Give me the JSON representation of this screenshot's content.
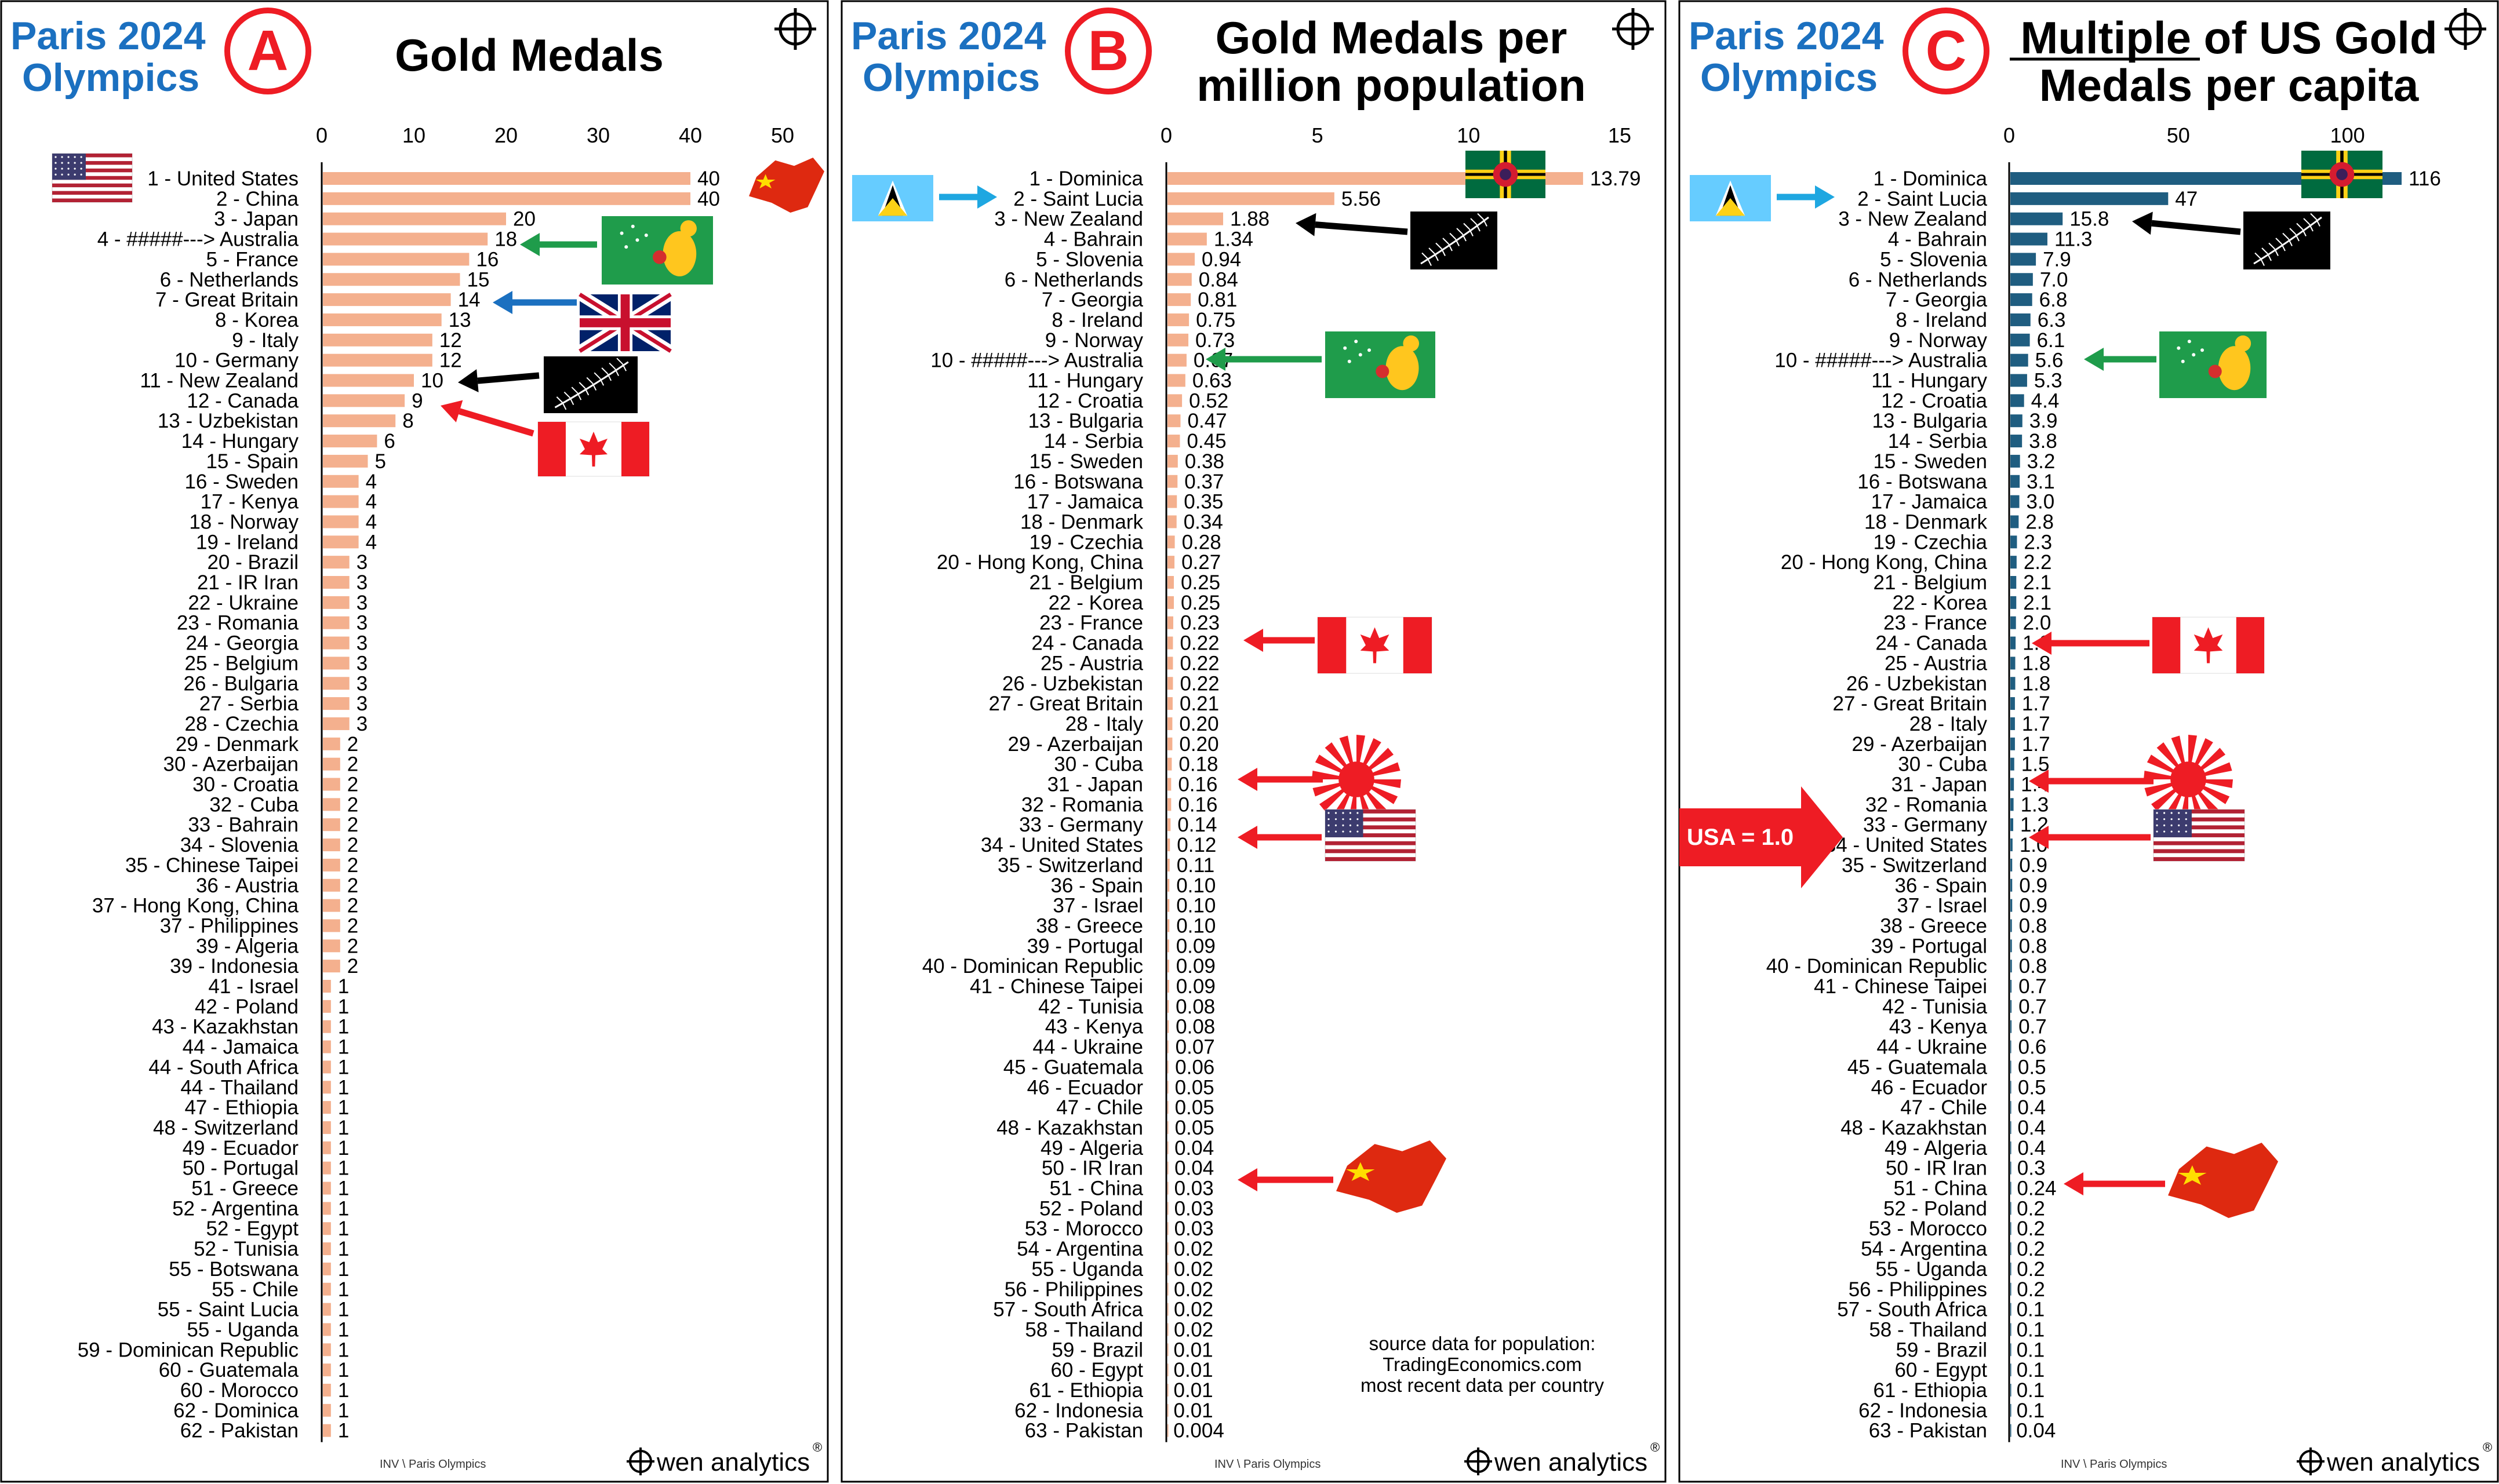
{
  "panels": [
    {
      "event": "Paris 2024\nOlympics",
      "badge": "A",
      "title": "Gold Medals",
      "source_note": "",
      "footer": "INV \\ Paris Olympics",
      "brand": "wen analytics",
      "chart_data": {
        "type": "bar",
        "orientation": "horizontal",
        "xlim": [
          0,
          50
        ],
        "ticks": [
          0,
          10,
          20,
          30,
          40,
          50
        ],
        "bar_color": "#f4b08e",
        "categories": [
          "1 - United States",
          "2 - China",
          "3 - Japan",
          "4 - #####--->  Australia",
          "5 - France",
          "6 - Netherlands",
          "7 - Great Britain",
          "8 - Korea",
          "9 - Italy",
          "10 - Germany",
          "11 - New Zealand",
          "12 - Canada",
          "13 - Uzbekistan",
          "14 - Hungary",
          "15 - Spain",
          "16 - Sweden",
          "17 - Kenya",
          "18 - Norway",
          "19 - Ireland",
          "20 - Brazil",
          "21 - IR Iran",
          "22 - Ukraine",
          "23 - Romania",
          "24 - Georgia",
          "25 - Belgium",
          "26 - Bulgaria",
          "27 - Serbia",
          "28 - Czechia",
          "29 - Denmark",
          "30 - Azerbaijan",
          "30 - Croatia",
          "32 - Cuba",
          "33 - Bahrain",
          "34 - Slovenia",
          "35 - Chinese Taipei",
          "36 - Austria",
          "37 - Hong Kong, China",
          "37 - Philippines",
          "39 - Algeria",
          "39 - Indonesia",
          "41 - Israel",
          "42 - Poland",
          "43 - Kazakhstan",
          "44 - Jamaica",
          "44 - South Africa",
          "44 - Thailand",
          "47 - Ethiopia",
          "48 - Switzerland",
          "49 - Ecuador",
          "50 - Portugal",
          "51 - Greece",
          "52 - Argentina",
          "52 - Egypt",
          "52 - Tunisia",
          "55 - Botswana",
          "55 - Chile",
          "55 - Saint Lucia",
          "55 - Uganda",
          "59 - Dominican Republic",
          "60 - Guatemala",
          "60 - Morocco",
          "62 - Dominica",
          "62 - Pakistan"
        ],
        "values": [
          40,
          40,
          20,
          18,
          16,
          15,
          14,
          13,
          12,
          12,
          10,
          9,
          8,
          6,
          5,
          4,
          4,
          4,
          4,
          3,
          3,
          3,
          3,
          3,
          3,
          3,
          3,
          3,
          2,
          2,
          2,
          2,
          2,
          2,
          2,
          2,
          2,
          2,
          2,
          2,
          1,
          1,
          1,
          1,
          1,
          1,
          1,
          1,
          1,
          1,
          1,
          1,
          1,
          1,
          1,
          1,
          1,
          1,
          1,
          1,
          1,
          1,
          1
        ],
        "labels": [
          "40",
          "40",
          "20",
          "18",
          "16",
          "15",
          "14",
          "13",
          "12",
          "12",
          "10",
          "9",
          "8",
          "6",
          "5",
          "4",
          "4",
          "4",
          "4",
          "3",
          "3",
          "3",
          "3",
          "3",
          "3",
          "3",
          "3",
          "3",
          "2",
          "2",
          "2",
          "2",
          "2",
          "2",
          "2",
          "2",
          "2",
          "2",
          "2",
          "2",
          "1",
          "1",
          "1",
          "1",
          "1",
          "1",
          "1",
          "1",
          "1",
          "1",
          "1",
          "1",
          "1",
          "1",
          "1",
          "1",
          "1",
          "1",
          "1",
          "1",
          "1",
          "1",
          "1"
        ]
      },
      "flags": [
        {
          "icon": "china-flag-icon"
        },
        {
          "icon": "australia-flag-icon",
          "arrow": "#1f9c4b"
        },
        {
          "icon": "uk-flag-icon",
          "arrow": "#1b70c0"
        },
        {
          "icon": "new-zealand-flag-icon",
          "arrow": "#000000"
        },
        {
          "icon": "canada-flag-icon",
          "arrow": "#ee1c24"
        },
        {
          "icon": "usa-flag-icon"
        }
      ]
    },
    {
      "event": "Paris 2024\nOlympics",
      "badge": "B",
      "title": "Gold Medals per\nmillion population",
      "source_note": "source data for population:\nTradingEconomics.com\nmost recent data per country",
      "footer": "INV \\ Paris Olympics",
      "brand": "wen analytics",
      "chart_data": {
        "type": "bar",
        "orientation": "horizontal",
        "xlim": [
          0,
          15
        ],
        "ticks": [
          0,
          5,
          10,
          15
        ],
        "bar_color": "#f4b08e",
        "categories": [
          "1 - Dominica",
          "2 - Saint Lucia",
          "3 - New Zealand",
          "4 - Bahrain",
          "5 - Slovenia",
          "6 - Netherlands",
          "7 - Georgia",
          "8 - Ireland",
          "9 - Norway",
          "10 - #####--->  Australia",
          "11 - Hungary",
          "12 - Croatia",
          "13 - Bulgaria",
          "14 - Serbia",
          "15 - Sweden",
          "16 - Botswana",
          "17 - Jamaica",
          "18 - Denmark",
          "19 - Czechia",
          "20 - Hong Kong, China",
          "21 - Belgium",
          "22 - Korea",
          "23 - France",
          "24 - Canada",
          "25 - Austria",
          "26 - Uzbekistan",
          "27 - Great Britain",
          "28 - Italy",
          "29 - Azerbaijan",
          "30 - Cuba",
          "31 - Japan",
          "32 - Romania",
          "33 - Germany",
          "34 - United States",
          "35 - Switzerland",
          "36 - Spain",
          "37 - Israel",
          "38 - Greece",
          "39 - Portugal",
          "40 - Dominican Republic",
          "41 - Chinese Taipei",
          "42 - Tunisia",
          "43 - Kenya",
          "44 - Ukraine",
          "45 - Guatemala",
          "46 - Ecuador",
          "47 - Chile",
          "48 - Kazakhstan",
          "49 - Algeria",
          "50 - IR Iran",
          "51 - China",
          "52 - Poland",
          "53 - Morocco",
          "54 - Argentina",
          "55 - Uganda",
          "56 - Philippines",
          "57 - South Africa",
          "58 - Thailand",
          "59 - Brazil",
          "60 - Egypt",
          "61 - Ethiopia",
          "62 - Indonesia",
          "63 - Pakistan"
        ],
        "values": [
          13.79,
          5.56,
          1.88,
          1.34,
          0.94,
          0.84,
          0.81,
          0.75,
          0.73,
          0.67,
          0.63,
          0.52,
          0.47,
          0.45,
          0.38,
          0.37,
          0.35,
          0.34,
          0.28,
          0.27,
          0.25,
          0.25,
          0.23,
          0.22,
          0.22,
          0.22,
          0.21,
          0.2,
          0.2,
          0.18,
          0.16,
          0.16,
          0.14,
          0.12,
          0.11,
          0.1,
          0.1,
          0.1,
          0.09,
          0.09,
          0.09,
          0.08,
          0.08,
          0.07,
          0.06,
          0.05,
          0.05,
          0.05,
          0.04,
          0.04,
          0.03,
          0.03,
          0.03,
          0.02,
          0.02,
          0.02,
          0.02,
          0.02,
          0.01,
          0.01,
          0.01,
          0.01,
          0.004
        ],
        "labels": [
          "13.79",
          "5.56",
          "1.88",
          "1.34",
          "0.94",
          "0.84",
          "0.81",
          "0.75",
          "0.73",
          "0.67",
          "0.63",
          "0.52",
          "0.47",
          "0.45",
          "0.38",
          "0.37",
          "0.35",
          "0.34",
          "0.28",
          "0.27",
          "0.25",
          "0.25",
          "0.23",
          "0.22",
          "0.22",
          "0.22",
          "0.21",
          "0.20",
          "0.20",
          "0.18",
          "0.16",
          "0.16",
          "0.14",
          "0.12",
          "0.11",
          "0.10",
          "0.10",
          "0.10",
          "0.09",
          "0.09",
          "0.09",
          "0.08",
          "0.08",
          "0.07",
          "0.06",
          "0.05",
          "0.05",
          "0.05",
          "0.04",
          "0.04",
          "0.03",
          "0.03",
          "0.03",
          "0.02",
          "0.02",
          "0.02",
          "0.02",
          "0.02",
          "0.01",
          "0.01",
          "0.01",
          "0.01",
          "0.004"
        ]
      },
      "flags": [
        {
          "icon": "saint-lucia-flag-icon",
          "arrow": "#1ea7e1"
        },
        {
          "icon": "dominica-flag-icon"
        },
        {
          "icon": "new-zealand-flag-icon",
          "arrow": "#000000"
        },
        {
          "icon": "australia-flag-icon",
          "arrow": "#1f9c4b"
        },
        {
          "icon": "canada-flag-icon",
          "arrow": "#ee1c24"
        },
        {
          "icon": "japan-flag-icon",
          "arrow": "#ee1c24"
        },
        {
          "icon": "usa-flag-icon",
          "arrow": "#ee1c24"
        },
        {
          "icon": "china-flag-icon",
          "arrow": "#ee1c24"
        }
      ]
    },
    {
      "event": "Paris 2024\nOlympics",
      "badge": "C",
      "title_underlined": "Multiple",
      "title": "Multiple of US Gold\nMedals per capita",
      "source_note": "",
      "footer": "INV \\ Paris Olympics",
      "brand": "wen analytics",
      "callout": "USA = 1.0",
      "chart_data": {
        "type": "bar",
        "orientation": "horizontal",
        "xlim": [
          0,
          116
        ],
        "ticks": [
          0,
          50,
          100
        ],
        "bar_color": "#1f5d80",
        "categories": [
          "1 - Dominica",
          "2 - Saint Lucia",
          "3 - New Zealand",
          "4 - Bahrain",
          "5 - Slovenia",
          "6 - Netherlands",
          "7 - Georgia",
          "8 - Ireland",
          "9 - Norway",
          "10 - #####--->  Australia",
          "11 - Hungary",
          "12 - Croatia",
          "13 - Bulgaria",
          "14 - Serbia",
          "15 - Sweden",
          "16 - Botswana",
          "17 - Jamaica",
          "18 - Denmark",
          "19 - Czechia",
          "20 - Hong Kong, China",
          "21 - Belgium",
          "22 - Korea",
          "23 - France",
          "24 - Canada",
          "25 - Austria",
          "26 - Uzbekistan",
          "27 - Great Britain",
          "28 - Italy",
          "29 - Azerbaijan",
          "30 - Cuba",
          "31 - Japan",
          "32 - Romania",
          "33 - Germany",
          "34 - United States",
          "35 - Switzerland",
          "36 - Spain",
          "37 - Israel",
          "38 - Greece",
          "39 - Portugal",
          "40 - Dominican Republic",
          "41 - Chinese Taipei",
          "42 - Tunisia",
          "43 - Kenya",
          "44 - Ukraine",
          "45 - Guatemala",
          "46 - Ecuador",
          "47 - Chile",
          "48 - Kazakhstan",
          "49 - Algeria",
          "50 - IR Iran",
          "51 - China",
          "52 - Poland",
          "53 - Morocco",
          "54 - Argentina",
          "55 - Uganda",
          "56 - Philippines",
          "57 - South Africa",
          "58 - Thailand",
          "59 - Brazil",
          "60 - Egypt",
          "61 - Ethiopia",
          "62 - Indonesia",
          "63 - Pakistan"
        ],
        "values": [
          116,
          47,
          15.8,
          11.3,
          7.9,
          7.0,
          6.8,
          6.3,
          6.1,
          5.6,
          5.3,
          4.4,
          3.9,
          3.8,
          3.2,
          3.1,
          3.0,
          2.8,
          2.3,
          2.2,
          2.1,
          2.1,
          2.0,
          1.9,
          1.8,
          1.8,
          1.7,
          1.7,
          1.7,
          1.5,
          1.4,
          1.3,
          1.2,
          1.0,
          0.9,
          0.9,
          0.9,
          0.8,
          0.8,
          0.8,
          0.7,
          0.7,
          0.7,
          0.6,
          0.5,
          0.5,
          0.4,
          0.4,
          0.4,
          0.3,
          0.24,
          0.2,
          0.2,
          0.2,
          0.2,
          0.2,
          0.1,
          0.1,
          0.1,
          0.1,
          0.1,
          0.1,
          0.04
        ],
        "labels": [
          "116",
          "47",
          "15.8",
          "11.3",
          "7.9",
          "7.0",
          "6.8",
          "6.3",
          "6.1",
          "5.6",
          "5.3",
          "4.4",
          "3.9",
          "3.8",
          "3.2",
          "3.1",
          "3.0",
          "2.8",
          "2.3",
          "2.2",
          "2.1",
          "2.1",
          "2.0",
          "1.9",
          "1.8",
          "1.8",
          "1.7",
          "1.7",
          "1.7",
          "1.5",
          "1.4",
          "1.3",
          "1.2",
          "1.0",
          "0.9",
          "0.9",
          "0.9",
          "0.8",
          "0.8",
          "0.8",
          "0.7",
          "0.7",
          "0.7",
          "0.6",
          "0.5",
          "0.5",
          "0.4",
          "0.4",
          "0.4",
          "0.3",
          "0.24",
          "0.2",
          "0.2",
          "0.2",
          "0.2",
          "0.2",
          "0.1",
          "0.1",
          "0.1",
          "0.1",
          "0.1",
          "0.1",
          "0.04"
        ]
      },
      "flags": [
        {
          "icon": "saint-lucia-flag-icon",
          "arrow": "#1ea7e1"
        },
        {
          "icon": "dominica-flag-icon"
        },
        {
          "icon": "new-zealand-flag-icon",
          "arrow": "#000000"
        },
        {
          "icon": "australia-flag-icon",
          "arrow": "#1f9c4b"
        },
        {
          "icon": "canada-flag-icon",
          "arrow": "#ee1c24"
        },
        {
          "icon": "japan-flag-icon",
          "arrow": "#ee1c24"
        },
        {
          "icon": "usa-flag-icon",
          "arrow": "#ee1c24"
        },
        {
          "icon": "china-flag-icon",
          "arrow": "#ee1c24"
        }
      ]
    }
  ],
  "colors": {
    "accent_blue": "#1b70c0",
    "badge_red": "#ee1c24",
    "bar_orange": "#f4b08e",
    "bar_navy": "#1f5d80"
  }
}
